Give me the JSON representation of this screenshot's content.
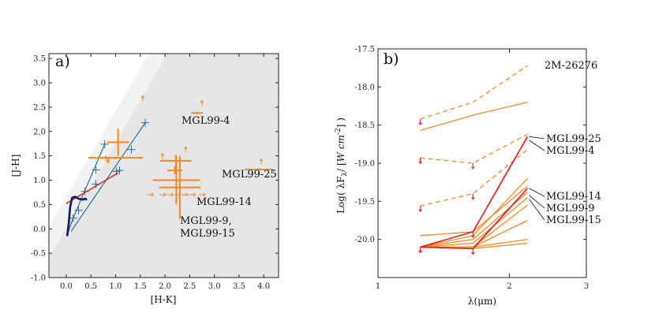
{
  "chart_data": [
    {
      "type": "scatter",
      "panel_label": "a)",
      "xlabel": "[H-K]",
      "ylabel": "[J-H]",
      "xlim": [
        -0.35,
        4.3
      ],
      "ylim": [
        -1.0,
        3.6
      ],
      "xticks": [
        "0.0",
        "0.5",
        "1.0",
        "1.5",
        "2.0",
        "2.5",
        "3.0",
        "3.5",
        "4.0"
      ],
      "yticks": [
        "-1.0",
        "-0.5",
        "0.0",
        "0.5",
        "1.0",
        "1.5",
        "2.0",
        "2.5",
        "3.0",
        "3.5"
      ],
      "colors": {
        "objects": "#f08a24",
        "reddening": "#2b6f96",
        "red_line": "#e01818",
        "locus": "#0a1a66",
        "shade_dark": "#e6e6e6",
        "shade_light": "#f2f2f2"
      },
      "reddening_band": {
        "lower_line": [
          [
            -0.35,
            -0.6
          ],
          [
            4.3,
            7.55
          ]
        ],
        "upper_line": [
          [
            -0.35,
            0.05
          ],
          [
            4.3,
            8.2
          ]
        ]
      },
      "dwarf_locus": [
        [
          0.02,
          -0.15
        ],
        [
          0.05,
          0.1
        ],
        [
          0.08,
          0.45
        ],
        [
          0.12,
          0.64
        ],
        [
          0.18,
          0.66
        ],
        [
          0.25,
          0.62
        ],
        [
          0.33,
          0.6
        ],
        [
          0.38,
          0.62
        ],
        [
          0.42,
          0.6
        ]
      ],
      "red_line": [
        [
          0.0,
          0.52
        ],
        [
          1.05,
          1.15
        ]
      ],
      "reddening_vectors": [
        {
          "points": [
            [
              0.02,
              -0.12
            ],
            [
              0.14,
              0.22
            ],
            [
              0.78,
              1.74
            ]
          ],
          "markers": [
            [
              0.14,
              0.22
            ],
            [
              0.38,
              0.77
            ],
            [
              0.6,
              1.21
            ],
            [
              0.78,
              1.74
            ]
          ]
        },
        {
          "points": [
            [
              0.1,
              -0.05
            ],
            [
              1.6,
              2.18
            ]
          ],
          "markers": [
            [
              0.25,
              0.38
            ],
            [
              0.6,
              0.92
            ],
            [
              1.02,
              1.18
            ],
            [
              1.08,
              1.2
            ],
            [
              1.32,
              1.63
            ],
            [
              1.6,
              2.18
            ]
          ]
        }
      ],
      "objects": [
        {
          "x": 1.05,
          "y": 1.78,
          "xerr": 0.22,
          "yerr": 0.28
        },
        {
          "x": 1.0,
          "y": 1.46,
          "xerr": 0.55,
          "yerr": 0.0
        },
        {
          "x": 2.22,
          "y": 1.4,
          "xerr": 0.32,
          "yerr": 0.12
        },
        {
          "x": 2.2,
          "y": 1.2,
          "xerr": 0.15,
          "yerr": 0.08
        },
        {
          "x": 2.23,
          "y": 1.0,
          "xerr": 0.48,
          "yerr": 0.5
        },
        {
          "x": 2.3,
          "y": 0.85,
          "xerr": 0.42,
          "yerr": 0.65
        },
        {
          "x": 2.65,
          "y": 2.38,
          "xerr": 0.12,
          "yerr": 0.0
        },
        {
          "x": 3.9,
          "y": 1.22,
          "xerr": 0.28,
          "yerr": 0.0
        },
        {
          "x": 0.85,
          "y": 1.4,
          "xerr": 0.0,
          "yerr": 0.05
        }
      ],
      "upper_limits": [
        [
          0.8,
          1.38
        ],
        [
          1.55,
          2.62
        ],
        [
          2.75,
          2.52
        ],
        [
          1.95,
          1.43
        ],
        [
          2.42,
          1.57
        ],
        [
          3.95,
          1.32
        ]
      ],
      "limit_points": [
        [
          1.7,
          0.7
        ],
        [
          1.95,
          0.7
        ],
        [
          2.1,
          0.7
        ],
        [
          2.25,
          0.7
        ],
        [
          2.4,
          0.7
        ],
        [
          2.55,
          0.7
        ],
        [
          2.75,
          0.7
        ]
      ],
      "annotations": [
        "MGL99-4",
        "MGL99-25",
        "MGL99-14",
        "MGL99-9,",
        "MGL99-15"
      ]
    },
    {
      "type": "line",
      "panel_label": "b)",
      "title": "2M-26276",
      "xlabel": "λ(μm)",
      "ylabel": "Log( λF",
      "ylabel_sub": "λ",
      "ylabel_mid": "/ [",
      "ylabel_unit": "W cm",
      "ylabel_sup": "-2",
      "ylabel_end": "] )",
      "xlim": [
        1.0,
        3.0
      ],
      "ylim": [
        -20.5,
        -17.5
      ],
      "xscale": "log",
      "xticks": [
        "1",
        "2",
        "3"
      ],
      "yticks": [
        "-17.5",
        "-18.0",
        "-18.5",
        "-19.0",
        "-19.5",
        "-20.0"
      ],
      "colors": {
        "series": "#f08a24",
        "highlight": "#e01818"
      },
      "x": [
        1.25,
        1.65,
        2.2
      ],
      "series": [
        {
          "values": [
            -18.42,
            -18.2,
            -17.72
          ],
          "style": "dashed",
          "color": "orange",
          "limits": [
            true,
            false,
            false
          ]
        },
        {
          "values": [
            -18.57,
            -18.37,
            -18.2
          ],
          "style": "solid",
          "color": "orange"
        },
        {
          "values": [
            -18.93,
            -19.0,
            -18.62
          ],
          "style": "dashed",
          "color": "orange",
          "limits": [
            true,
            true,
            false
          ]
        },
        {
          "values": [
            -19.56,
            -19.4,
            -18.82
          ],
          "style": "dashed",
          "color": "orange",
          "limits": [
            true,
            true,
            false
          ]
        },
        {
          "values": [
            -20.1,
            -19.95,
            -19.2
          ],
          "style": "solid",
          "color": "orange"
        },
        {
          "values": [
            -19.95,
            -19.9,
            -19.3
          ],
          "style": "solid",
          "color": "orange"
        },
        {
          "values": [
            -20.1,
            -20.0,
            -19.38
          ],
          "style": "solid",
          "color": "orange"
        },
        {
          "values": [
            -20.1,
            -20.05,
            -19.45
          ],
          "style": "solid",
          "color": "orange"
        },
        {
          "values": [
            -20.1,
            -20.1,
            -19.55
          ],
          "style": "solid",
          "color": "orange"
        },
        {
          "values": [
            -20.1,
            -20.1,
            -19.75
          ],
          "style": "solid",
          "color": "orange"
        },
        {
          "values": [
            -20.1,
            -20.1,
            -20.0
          ],
          "style": "solid",
          "color": "orange"
        },
        {
          "values": [
            -20.1,
            -20.12,
            -20.05
          ],
          "style": "solid",
          "color": "orange"
        },
        {
          "values": [
            -20.1,
            -19.9,
            -18.65
          ],
          "style": "solid",
          "color": "red",
          "limits": [
            true,
            true,
            false
          ]
        },
        {
          "values": [
            -20.1,
            -20.12,
            -19.33
          ],
          "style": "solid",
          "color": "red",
          "limits": [
            true,
            true,
            false
          ]
        }
      ],
      "annotations": [
        {
          "text": "MGL99-25",
          "target": [
            2.2,
            -18.65
          ]
        },
        {
          "text": "MGL99-4",
          "target": [
            2.2,
            -18.7
          ]
        },
        {
          "text": "MGL99-14",
          "target": [
            2.2,
            -19.33
          ]
        },
        {
          "text": "MGL99-9",
          "target": [
            2.2,
            -19.42
          ]
        },
        {
          "text": "MGL99-15",
          "target": [
            2.2,
            -19.47
          ]
        }
      ]
    }
  ]
}
